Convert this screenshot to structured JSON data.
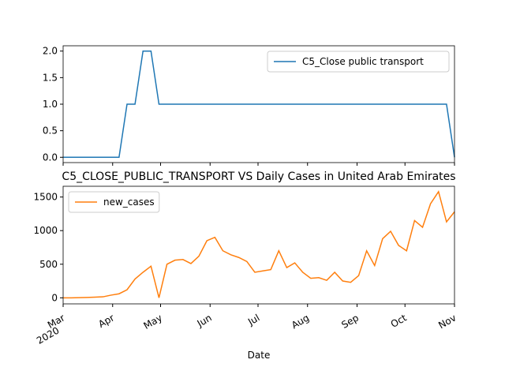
{
  "chart_data": [
    {
      "type": "line",
      "xlim": [
        "2020-03",
        "2020-11"
      ],
      "ylim": [
        -0.1,
        2.1
      ],
      "yticks": [
        {
          "value": 0,
          "label": "0.0"
        },
        {
          "value": 0.5,
          "label": "0.5"
        },
        {
          "value": 1,
          "label": "1.0"
        },
        {
          "value": 1.5,
          "label": "1.5"
        },
        {
          "value": 2,
          "label": "2.0"
        }
      ],
      "legend": "upper right",
      "series": [
        {
          "name": "C5_Close public transport",
          "color": "#1f77b4",
          "values": [
            0,
            0,
            0,
            0,
            0,
            0,
            0,
            0,
            1,
            1,
            2,
            2,
            1,
            1,
            1,
            1,
            1,
            1,
            1,
            1,
            1,
            1,
            1,
            1,
            1,
            1,
            1,
            1,
            1,
            1,
            1,
            1,
            1,
            1,
            1,
            1,
            1,
            1,
            1,
            1,
            1,
            1,
            1,
            1,
            1,
            1,
            1,
            1,
            1,
            0
          ]
        }
      ]
    },
    {
      "type": "line",
      "title": "C5_CLOSE_PUBLIC_TRANSPORT VS Daily Cases in United Arab Emirates",
      "x_label": "Date",
      "xlim": [
        "2020-03",
        "2020-11"
      ],
      "xticks": [
        {
          "value": "2020-03",
          "label": "Mar"
        },
        {
          "value": "2020-04",
          "label": "Apr"
        },
        {
          "value": "2020-05",
          "label": "May"
        },
        {
          "value": "2020-06",
          "label": "Jun"
        },
        {
          "value": "2020-07",
          "label": "Jul"
        },
        {
          "value": "2020-08",
          "label": "Aug"
        },
        {
          "value": "2020-09",
          "label": "Sep"
        },
        {
          "value": "2020-10",
          "label": "Oct"
        },
        {
          "value": "2020-11",
          "label": "Nov"
        }
      ],
      "x_year_label": "2020",
      "ylim": [
        -90,
        1660
      ],
      "yticks": [
        0,
        500,
        1000,
        1500
      ],
      "legend": "upper left",
      "series": [
        {
          "name": "new_cases",
          "color": "#ff7f0e",
          "values": [
            0,
            0,
            2,
            5,
            10,
            15,
            40,
            60,
            120,
            280,
            380,
            470,
            0,
            500,
            560,
            570,
            510,
            620,
            850,
            900,
            700,
            640,
            600,
            540,
            380,
            400,
            420,
            700,
            450,
            520,
            380,
            290,
            300,
            260,
            380,
            250,
            230,
            330,
            700,
            480,
            880,
            990,
            780,
            700,
            1150,
            1050,
            1400,
            1580,
            1130,
            1280
          ]
        }
      ]
    }
  ]
}
